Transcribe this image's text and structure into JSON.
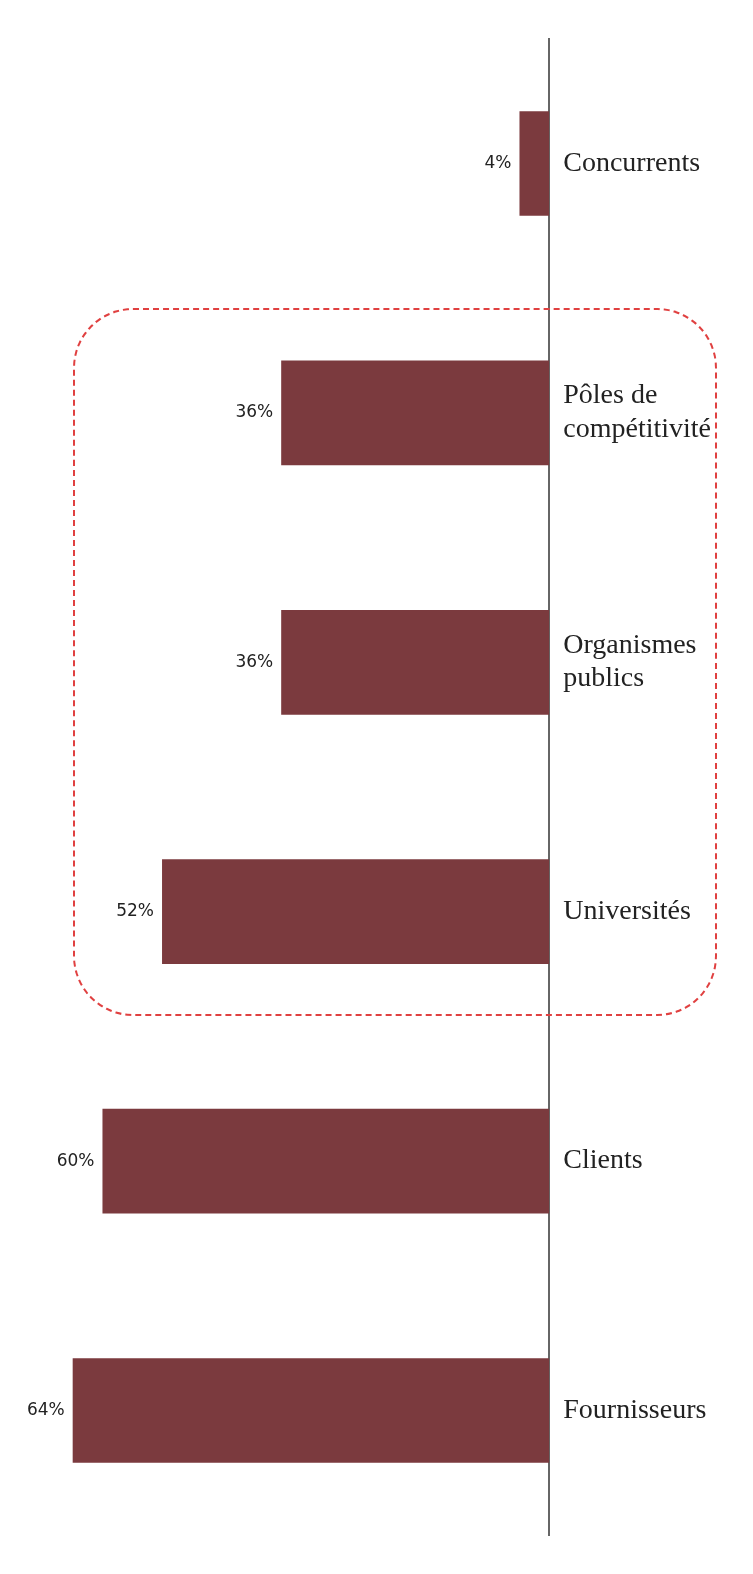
{
  "chart_data": {
    "type": "bar",
    "orientation": "horizontal",
    "categories": [
      "Concurrents",
      "Pôles de compétitivité",
      "Organismes publics",
      "Universités",
      "Clients",
      "Fournisseurs"
    ],
    "values": [
      4,
      36,
      36,
      52,
      60,
      64
    ],
    "value_labels": [
      "4%",
      "36%",
      "36%",
      "52%",
      "60%",
      "64%"
    ],
    "color": "#7b3a3e"
  }
}
